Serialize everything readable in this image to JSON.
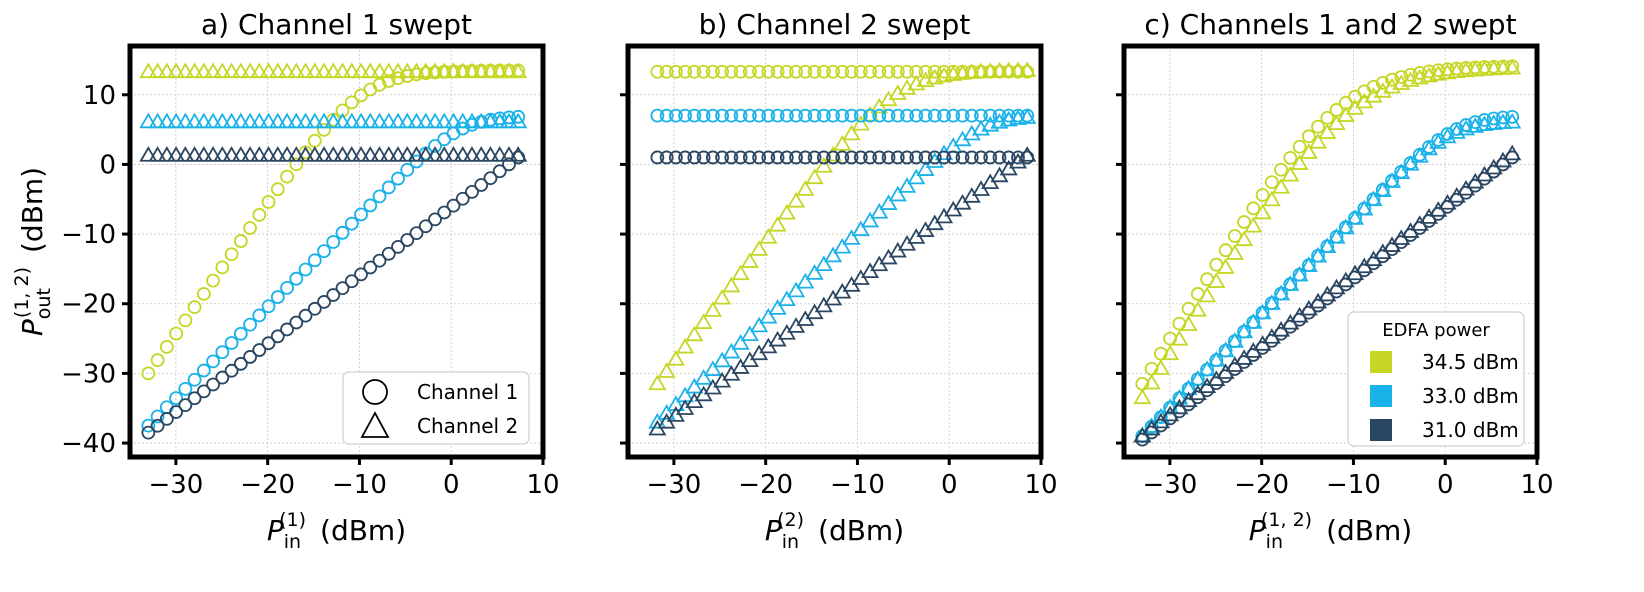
{
  "chart_data": [
    {
      "type": "scatter",
      "panel": "a",
      "title": "a) Channel 1 swept",
      "xlabel": "P_in^(1) (dBm)",
      "xlabel_parts": {
        "main": "P",
        "sub": "in",
        "sup": "(1)",
        "unit": "(dBm)"
      },
      "ylabel": "P_out^(1,2) (dBm)",
      "ylabel_parts": {
        "main": "P",
        "sub": "out",
        "sup": "(1, 2)",
        "unit": "(dBm)"
      },
      "xlim": [
        -35,
        10
      ],
      "ylim": [
        -42,
        17
      ],
      "xticks": [
        -30,
        -20,
        -10,
        0,
        10
      ],
      "yticks": [
        -40,
        -30,
        -20,
        -10,
        0,
        10
      ],
      "xtick_labels": [
        "−30",
        "−20",
        "−10",
        "0",
        "10"
      ],
      "ytick_labels": [
        "−40",
        "−30",
        "−20",
        "−10",
        "0",
        "10"
      ],
      "show_yticklabels": true,
      "grid": true,
      "x_start": -33,
      "x_end": 7.3,
      "n_points": 41,
      "series": [
        {
          "channel": "Channel 1",
          "marker": "circle",
          "edfa": "34.5 dBm",
          "color": "#c6d624",
          "curve": "sat",
          "y_start": -30,
          "y_sat": 13.5,
          "x_knee": -10,
          "k": 0.35
        },
        {
          "channel": "Channel 2",
          "marker": "triangle",
          "edfa": "34.5 dBm",
          "color": "#c6d624",
          "curve": "flat",
          "y_flat": 13.3
        },
        {
          "channel": "Channel 1",
          "marker": "circle",
          "edfa": "33.0 dBm",
          "color": "#1ab2e8",
          "curve": "sat",
          "y_start": -37.5,
          "y_sat": 7,
          "x_knee": 1,
          "k": 0.45
        },
        {
          "channel": "Channel 2",
          "marker": "triangle",
          "edfa": "33.0 dBm",
          "color": "#1ab2e8",
          "curve": "flat",
          "y_flat": 6.1
        },
        {
          "channel": "Channel 1",
          "marker": "circle",
          "edfa": "31.0 dBm",
          "color": "#2b4660",
          "curve": "lin",
          "y_start": -38.5,
          "y_end": 1
        },
        {
          "channel": "Channel 2",
          "marker": "triangle",
          "edfa": "31.0 dBm",
          "color": "#2b4660",
          "curve": "flat",
          "y_flat": 1.3
        }
      ],
      "legend": {
        "position": "lower-right",
        "title": "",
        "entries": [
          {
            "label": "Channel 1",
            "symbol": "circle"
          },
          {
            "label": "Channel 2",
            "symbol": "triangle"
          }
        ]
      }
    },
    {
      "type": "scatter",
      "panel": "b",
      "title": "b) Channel 2 swept",
      "xlabel": "P_in^(2) (dBm)",
      "xlabel_parts": {
        "main": "P",
        "sub": "in",
        "sup": "(2)",
        "unit": "(dBm)"
      },
      "xlim": [
        -35,
        10
      ],
      "ylim": [
        -42,
        17
      ],
      "xticks": [
        -30,
        -20,
        -10,
        0,
        10
      ],
      "yticks": [
        -40,
        -30,
        -20,
        -10,
        0,
        10
      ],
      "xtick_labels": [
        "−30",
        "−20",
        "−10",
        "0",
        "10"
      ],
      "show_yticklabels": false,
      "grid": true,
      "x_start": -31.8,
      "x_end": 8.5,
      "n_points": 41,
      "series": [
        {
          "channel": "Channel 1",
          "marker": "circle",
          "edfa": "34.5 dBm",
          "color": "#c6d624",
          "curve": "flat",
          "y_flat": 13.3
        },
        {
          "channel": "Channel 2",
          "marker": "triangle",
          "edfa": "34.5 dBm",
          "color": "#c6d624",
          "curve": "sat",
          "y_start": -31.5,
          "y_sat": 13.5,
          "x_knee": -6,
          "k": 0.33
        },
        {
          "channel": "Channel 1",
          "marker": "circle",
          "edfa": "33.0 dBm",
          "color": "#1ab2e8",
          "curve": "flat",
          "y_flat": 7
        },
        {
          "channel": "Channel 2",
          "marker": "triangle",
          "edfa": "33.0 dBm",
          "color": "#1ab2e8",
          "curve": "sat",
          "y_start": -37,
          "y_sat": 7,
          "x_knee": 3.5,
          "k": 0.45
        },
        {
          "channel": "Channel 1",
          "marker": "circle",
          "edfa": "31.0 dBm",
          "color": "#2b4660",
          "curve": "flat",
          "y_flat": 1
        },
        {
          "channel": "Channel 2",
          "marker": "triangle",
          "edfa": "31.0 dBm",
          "color": "#2b4660",
          "curve": "lin",
          "y_start": -38,
          "y_end": 1.3
        }
      ]
    },
    {
      "type": "scatter",
      "panel": "c",
      "title": "c) Channels 1 and 2 swept",
      "xlabel": "P_in^(1,2) (dBm)",
      "xlabel_parts": {
        "main": "P",
        "sub": "in",
        "sup": "(1, 2)",
        "unit": "(dBm)"
      },
      "xlim": [
        -35,
        10
      ],
      "ylim": [
        -42,
        17
      ],
      "xticks": [
        -30,
        -20,
        -10,
        0,
        10
      ],
      "yticks": [
        -40,
        -30,
        -20,
        -10,
        0,
        10
      ],
      "xtick_labels": [
        "−30",
        "−20",
        "−10",
        "0",
        "10"
      ],
      "show_yticklabels": false,
      "grid": true,
      "x_start": -33,
      "x_end": 7.3,
      "n_points": 41,
      "series": [
        {
          "channel": "Channel 1",
          "marker": "circle",
          "edfa": "34.5 dBm",
          "color": "#c6d624",
          "curve": "sat",
          "y_start": -31.5,
          "y_sat": 14.2,
          "x_knee": -12,
          "k": 0.23
        },
        {
          "channel": "Channel 2",
          "marker": "triangle",
          "edfa": "34.5 dBm",
          "color": "#c6d624",
          "curve": "sat",
          "y_start": -33.5,
          "y_sat": 14,
          "x_knee": -10.5,
          "k": 0.22
        },
        {
          "channel": "Channel 1",
          "marker": "circle",
          "edfa": "33.0 dBm",
          "color": "#1ab2e8",
          "curve": "sat",
          "y_start": -39,
          "y_sat": 7,
          "x_knee": 1,
          "k": 0.45
        },
        {
          "channel": "Channel 2",
          "marker": "triangle",
          "edfa": "33.0 dBm",
          "color": "#1ab2e8",
          "curve": "sat",
          "y_start": -39,
          "y_sat": 6.2,
          "x_knee": 0.5,
          "k": 0.45
        },
        {
          "channel": "Channel 1",
          "marker": "circle",
          "edfa": "31.0 dBm",
          "color": "#2b4660",
          "curve": "lin",
          "y_start": -39.5,
          "y_end": 1
        },
        {
          "channel": "Channel 2",
          "marker": "triangle",
          "edfa": "31.0 dBm",
          "color": "#2b4660",
          "curve": "lin",
          "y_start": -39,
          "y_end": 1.5
        }
      ],
      "legend": {
        "position": "lower-right",
        "title": "EDFA power",
        "entries": [
          {
            "label": "34.5 dBm",
            "symbol": "square",
            "color": "#c6d624"
          },
          {
            "label": "33.0 dBm",
            "symbol": "square",
            "color": "#1ab2e8"
          },
          {
            "label": "31.0 dBm",
            "symbol": "square",
            "color": "#2b4660"
          }
        ]
      }
    }
  ]
}
